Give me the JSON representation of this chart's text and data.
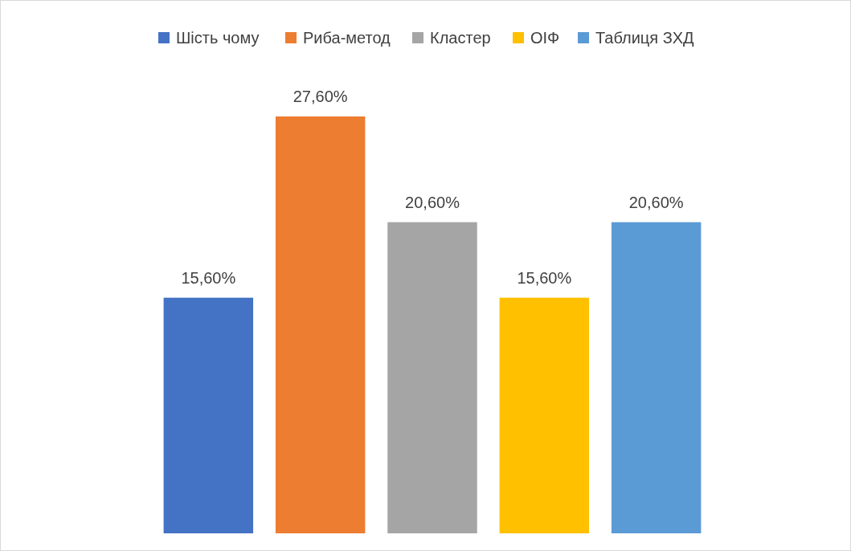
{
  "chart_data": {
    "type": "bar",
    "categories": [
      null
    ],
    "legend": "top",
    "series": [
      {
        "name": "Шість чому",
        "color": "#4472c4",
        "values": [
          15.6
        ],
        "value_labels": [
          "15,60%"
        ]
      },
      {
        "name": "Риба-метод",
        "color": "#ed7d31",
        "values": [
          27.6
        ],
        "value_labels": [
          "27,60%"
        ]
      },
      {
        "name": "Кластер",
        "color": "#a5a5a5",
        "values": [
          20.6
        ],
        "value_labels": [
          "20,60%"
        ]
      },
      {
        "name": "ОІФ",
        "color": "#ffc000",
        "values": [
          15.6
        ],
        "value_labels": [
          "15,60%"
        ]
      },
      {
        "name": "Таблиця ЗХД",
        "color": "#5b9bd5",
        "values": [
          20.6
        ],
        "value_labels": [
          "20,60%"
        ]
      }
    ]
  }
}
